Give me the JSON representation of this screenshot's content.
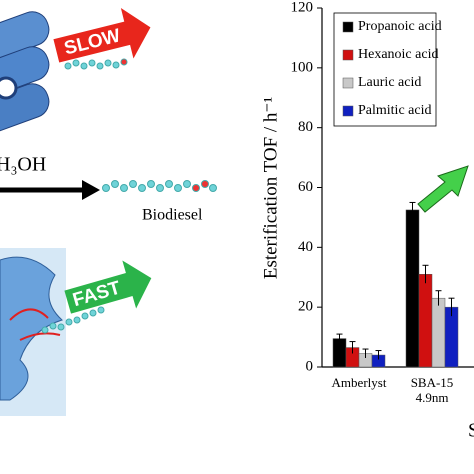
{
  "chart_data": {
    "type": "bar",
    "y_label": "Esterification TOF / h⁻¹",
    "x_label": "S",
    "categories": [
      "Amberlyst",
      "SBA-15\n4.9nm"
    ],
    "series": [
      {
        "name": "Propanoic acid",
        "color": "#000000",
        "values": [
          9.5,
          52.5
        ],
        "errors": [
          1.5,
          2.5
        ]
      },
      {
        "name": "Hexanoic acid",
        "color": "#d01010",
        "values": [
          6.5,
          31
        ],
        "errors": [
          2,
          3
        ]
      },
      {
        "name": "Lauric acid",
        "color": "#c8c8c8",
        "values": [
          4.5,
          23
        ],
        "errors": [
          1.5,
          2.5
        ]
      },
      {
        "name": "Palmitic acid",
        "color": "#1020c0",
        "values": [
          4,
          20
        ],
        "errors": [
          1.5,
          3
        ]
      }
    ],
    "ylim": [
      0,
      120
    ],
    "yticks": [
      0,
      20,
      40,
      60,
      80,
      100,
      120
    ],
    "annotations": [
      "SLOW",
      "H₃OH",
      "Biodiesel",
      "FAST"
    ]
  }
}
